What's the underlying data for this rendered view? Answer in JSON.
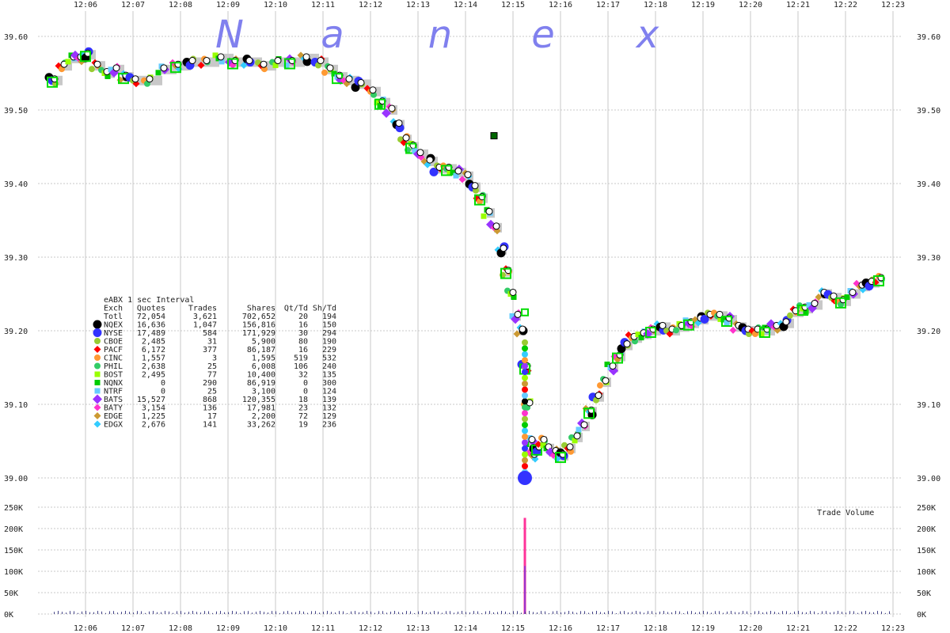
{
  "chart_data": {
    "type": "scatter",
    "title": "",
    "watermark": [
      "N",
      "a",
      "n",
      "e",
      "x"
    ],
    "colors": {
      "grid": "#c8c8c8",
      "nbbo": "#c8c8c8",
      "watermark": "#8080ee",
      "volume": "#ff3399"
    },
    "x_ticks": [
      "12:06",
      "12:07",
      "12:08",
      "12:09",
      "12:10",
      "12:11",
      "12:12",
      "12:13",
      "12:14",
      "12:15",
      "12:16",
      "12:17",
      "12:18",
      "12:19",
      "12:20",
      "12:21",
      "12:22",
      "12:23"
    ],
    "y_ticks": [
      "39.60",
      "39.50",
      "39.40",
      "39.30",
      "39.20",
      "39.10",
      "39.00"
    ],
    "ylim": [
      38.955,
      39.625
    ],
    "volume": {
      "label": "Trade Volume",
      "y_ticks": [
        "250K",
        "200K",
        "150K",
        "100K",
        "50K",
        "0K"
      ],
      "ylim": [
        0,
        250000
      ],
      "spike": {
        "x": 9.25,
        "value": 225000
      }
    },
    "price_series": [
      {
        "x": -0.7,
        "y": 39.54
      },
      {
        "x": -0.5,
        "y": 39.56
      },
      {
        "x": -0.3,
        "y": 39.57
      },
      {
        "x": -0.15,
        "y": 39.57
      },
      {
        "x": 0.0,
        "y": 39.575
      },
      {
        "x": 0.2,
        "y": 39.56
      },
      {
        "x": 0.4,
        "y": 39.55
      },
      {
        "x": 0.6,
        "y": 39.555
      },
      {
        "x": 0.8,
        "y": 39.545
      },
      {
        "x": 1.0,
        "y": 39.54
      },
      {
        "x": 1.3,
        "y": 39.54
      },
      {
        "x": 1.6,
        "y": 39.555
      },
      {
        "x": 1.9,
        "y": 39.56
      },
      {
        "x": 2.2,
        "y": 39.565
      },
      {
        "x": 2.5,
        "y": 39.565
      },
      {
        "x": 2.8,
        "y": 39.57
      },
      {
        "x": 3.1,
        "y": 39.565
      },
      {
        "x": 3.4,
        "y": 39.565
      },
      {
        "x": 3.7,
        "y": 39.56
      },
      {
        "x": 4.0,
        "y": 39.565
      },
      {
        "x": 4.3,
        "y": 39.565
      },
      {
        "x": 4.6,
        "y": 39.57
      },
      {
        "x": 4.9,
        "y": 39.565
      },
      {
        "x": 5.1,
        "y": 39.555
      },
      {
        "x": 5.3,
        "y": 39.545
      },
      {
        "x": 5.5,
        "y": 39.54
      },
      {
        "x": 5.75,
        "y": 39.535
      },
      {
        "x": 6.0,
        "y": 39.525
      },
      {
        "x": 6.2,
        "y": 39.51
      },
      {
        "x": 6.4,
        "y": 39.5
      },
      {
        "x": 6.55,
        "y": 39.48
      },
      {
        "x": 6.7,
        "y": 39.46
      },
      {
        "x": 6.85,
        "y": 39.45
      },
      {
        "x": 7.0,
        "y": 39.44
      },
      {
        "x": 7.2,
        "y": 39.43
      },
      {
        "x": 7.4,
        "y": 39.42
      },
      {
        "x": 7.6,
        "y": 39.42
      },
      {
        "x": 7.8,
        "y": 39.415
      },
      {
        "x": 8.0,
        "y": 39.41
      },
      {
        "x": 8.15,
        "y": 39.395
      },
      {
        "x": 8.3,
        "y": 39.38
      },
      {
        "x": 8.45,
        "y": 39.36
      },
      {
        "x": 8.6,
        "y": 39.34
      },
      {
        "x": 8.75,
        "y": 39.31
      },
      {
        "x": 8.85,
        "y": 39.28
      },
      {
        "x": 8.95,
        "y": 39.25
      },
      {
        "x": 9.05,
        "y": 39.22
      },
      {
        "x": 9.15,
        "y": 39.2
      },
      {
        "x": 9.25,
        "y": 39.15
      },
      {
        "x": 9.3,
        "y": 39.1
      },
      {
        "x": 9.35,
        "y": 39.05
      },
      {
        "x": 9.4,
        "y": 39.03
      },
      {
        "x": 9.5,
        "y": 39.04
      },
      {
        "x": 9.6,
        "y": 39.05
      },
      {
        "x": 9.7,
        "y": 39.04
      },
      {
        "x": 9.85,
        "y": 39.035
      },
      {
        "x": 10.0,
        "y": 39.03
      },
      {
        "x": 10.15,
        "y": 39.04
      },
      {
        "x": 10.3,
        "y": 39.055
      },
      {
        "x": 10.45,
        "y": 39.07
      },
      {
        "x": 10.6,
        "y": 39.09
      },
      {
        "x": 10.75,
        "y": 39.11
      },
      {
        "x": 10.9,
        "y": 39.13
      },
      {
        "x": 11.05,
        "y": 39.15
      },
      {
        "x": 11.2,
        "y": 39.165
      },
      {
        "x": 11.35,
        "y": 39.18
      },
      {
        "x": 11.5,
        "y": 39.19
      },
      {
        "x": 11.7,
        "y": 39.195
      },
      {
        "x": 11.9,
        "y": 39.2
      },
      {
        "x": 12.1,
        "y": 39.205
      },
      {
        "x": 12.3,
        "y": 39.2
      },
      {
        "x": 12.5,
        "y": 39.205
      },
      {
        "x": 12.7,
        "y": 39.21
      },
      {
        "x": 12.9,
        "y": 39.215
      },
      {
        "x": 13.1,
        "y": 39.22
      },
      {
        "x": 13.3,
        "y": 39.22
      },
      {
        "x": 13.5,
        "y": 39.215
      },
      {
        "x": 13.7,
        "y": 39.205
      },
      {
        "x": 13.9,
        "y": 39.2
      },
      {
        "x": 14.1,
        "y": 39.2
      },
      {
        "x": 14.3,
        "y": 39.2
      },
      {
        "x": 14.5,
        "y": 39.205
      },
      {
        "x": 14.7,
        "y": 39.21
      },
      {
        "x": 14.9,
        "y": 39.225
      },
      {
        "x": 15.1,
        "y": 39.23
      },
      {
        "x": 15.3,
        "y": 39.235
      },
      {
        "x": 15.5,
        "y": 39.25
      },
      {
        "x": 15.7,
        "y": 39.245
      },
      {
        "x": 15.9,
        "y": 39.24
      },
      {
        "x": 16.1,
        "y": 39.25
      },
      {
        "x": 16.3,
        "y": 39.26
      },
      {
        "x": 16.5,
        "y": 39.265
      },
      {
        "x": 16.7,
        "y": 39.27
      }
    ],
    "crash_column": {
      "x": 9.25,
      "y_from": 39.0,
      "y_to": 39.19
    },
    "outlier": {
      "x": 8.6,
      "y": 39.465
    },
    "legend": {
      "title": "eABX 1 sec Interval",
      "headers": [
        "Exch",
        "Quotes",
        "Trades",
        "Shares",
        "Qt/Td",
        "Sh/Td"
      ],
      "rows": [
        {
          "exch": "Totl",
          "quotes": "72,054",
          "trades": "3,621",
          "shares": "702,652",
          "qt_td": "20",
          "sh_td": "194",
          "color": "#000000",
          "marker": "circle-lg"
        },
        {
          "exch": "NQEX",
          "quotes": "16,636",
          "trades": "1,047",
          "shares": "156,816",
          "qt_td": "16",
          "sh_td": "150",
          "color": "#000000",
          "marker": "circle-lg"
        },
        {
          "exch": "NYSE",
          "quotes": "17,489",
          "trades": "584",
          "shares": "171,929",
          "qt_td": "30",
          "sh_td": "294",
          "color": "#3333ff",
          "marker": "circle-lg"
        },
        {
          "exch": "CBOE",
          "quotes": "2,485",
          "trades": "31",
          "shares": "5,900",
          "qt_td": "80",
          "sh_td": "190",
          "color": "#99cc33",
          "marker": "circle"
        },
        {
          "exch": "PACF",
          "quotes": "6,172",
          "trades": "377",
          "shares": "86,187",
          "qt_td": "16",
          "sh_td": "229",
          "color": "#ff0000",
          "marker": "diamond"
        },
        {
          "exch": "CINC",
          "quotes": "1,557",
          "trades": "3",
          "shares": "1,595",
          "qt_td": "519",
          "sh_td": "532",
          "color": "#ff9933",
          "marker": "circle"
        },
        {
          "exch": "PHIL",
          "quotes": "2,638",
          "trades": "25",
          "shares": "6,008",
          "qt_td": "106",
          "sh_td": "240",
          "color": "#33cc66",
          "marker": "circle"
        },
        {
          "exch": "BOST",
          "quotes": "2,495",
          "trades": "77",
          "shares": "10,400",
          "qt_td": "32",
          "sh_td": "135",
          "color": "#99ff00",
          "marker": "square"
        },
        {
          "exch": "NQNX",
          "quotes": "0",
          "trades": "290",
          "shares": "86,919",
          "qt_td": "0",
          "sh_td": "300",
          "color": "#00cc00",
          "marker": "square"
        },
        {
          "exch": "NTRF",
          "quotes": "0",
          "trades": "25",
          "shares": "3,100",
          "qt_td": "0",
          "sh_td": "124",
          "color": "#66ccff",
          "marker": "square"
        },
        {
          "exch": "BATS",
          "quotes": "15,527",
          "trades": "868",
          "shares": "120,355",
          "qt_td": "18",
          "sh_td": "139",
          "color": "#9933ff",
          "marker": "diamond-lg"
        },
        {
          "exch": "BATY",
          "quotes": "3,154",
          "trades": "136",
          "shares": "17,981",
          "qt_td": "23",
          "sh_td": "132",
          "color": "#ff33cc",
          "marker": "diamond"
        },
        {
          "exch": "EDGE",
          "quotes": "1,225",
          "trades": "17",
          "shares": "2,200",
          "qt_td": "72",
          "sh_td": "129",
          "color": "#cc9933",
          "marker": "diamond"
        },
        {
          "exch": "EDGX",
          "quotes": "2,676",
          "trades": "141",
          "shares": "33,262",
          "qt_td": "19",
          "sh_td": "236",
          "color": "#33ccff",
          "marker": "diamond"
        }
      ]
    }
  }
}
